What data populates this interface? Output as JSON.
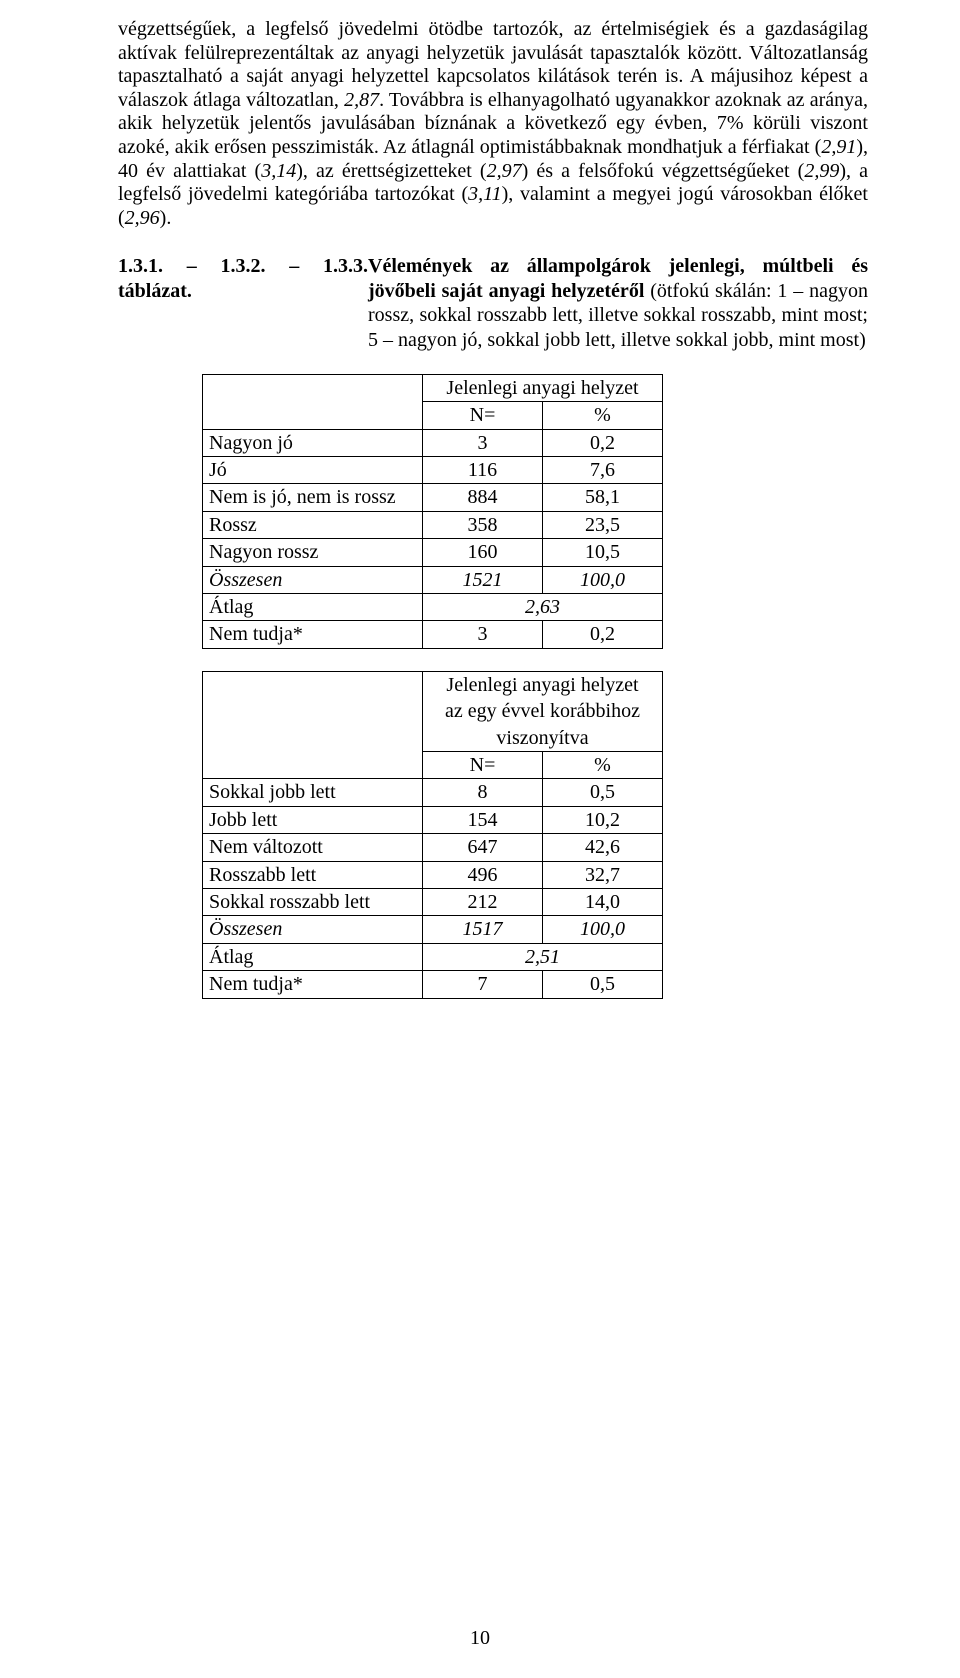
{
  "paragraph": {
    "p1": "végzettségűek, a legfelső jövedelmi ötödbe tartozók, az értelmiségiek és a gazdaságilag aktívak felülreprezentáltak az anyagi helyzetük javulását tapasztalók között. Változatlanság tapasztalható a saját anyagi helyzettel kapcsolatos kilátások terén is. A májusihoz képest a válaszok átlaga változatlan, ",
    "v1": "2,87",
    "p2": ". Továbbra is elhanyagolható ugyanakkor azoknak az aránya, akik helyzetük jelentős javulásában bíznának a következő egy évben, 7% körüli viszont azoké, akik erősen pesszimisták. Az átlagnál optimistábbaknak mondhatjuk a férfiakat (",
    "v2": "2,91",
    "p3": "), 40 év alattiakat (",
    "v3": "3,14",
    "p4": "), az érettségizetteket (",
    "v4": "2,97",
    "p5": ") és a felsőfokú végzettségűeket (",
    "v5": "2,99",
    "p6": "), a legfelső jövedelmi kategóriába tartozókat (",
    "v6": "3,11",
    "p7": "), valamint a megyei jogú városokban élőket (",
    "v7": "2,96",
    "p8": ")."
  },
  "heading": {
    "num": "1.3.1. – 1.3.2. – 1.3.3. táblázat. ",
    "title": "Vélemények az állampolgárok jelenlegi, múltbeli és jövőbeli saját anyagi helyzetéről ",
    "desc": "(ötfokú skálán: 1 – nagyon rossz, sokkal rosszabb lett, illetve sokkal rosszabb, mint most; 5 – nagyon jó, sokkal jobb lett, illetve sokkal jobb, mint most)"
  },
  "table1": {
    "header": "Jelenlegi anyagi helyzet",
    "col_n": "N=",
    "col_pct": "%",
    "rows": [
      {
        "label": "Nagyon jó",
        "n": "3",
        "pct": "0,2"
      },
      {
        "label": "Jó",
        "n": "116",
        "pct": "7,6"
      },
      {
        "label": "Nem is jó, nem is rossz",
        "n": "884",
        "pct": "58,1"
      },
      {
        "label": "Rossz",
        "n": "358",
        "pct": "23,5"
      },
      {
        "label": "Nagyon rossz",
        "n": "160",
        "pct": "10,5"
      }
    ],
    "total": {
      "label": "Összesen",
      "n": "1521",
      "pct": "100,0"
    },
    "mean": {
      "label": "Átlag",
      "value": "2,63"
    },
    "dk": {
      "label": "Nem tudja*",
      "n": "3",
      "pct": "0,2"
    }
  },
  "table2": {
    "header_l1": "Jelenlegi anyagi helyzet",
    "header_l2": "az egy évvel korábbihoz",
    "header_l3": "viszonyítva",
    "col_n": "N=",
    "col_pct": "%",
    "rows": [
      {
        "label": "Sokkal jobb lett",
        "n": "8",
        "pct": "0,5"
      },
      {
        "label": "Jobb lett",
        "n": "154",
        "pct": "10,2"
      },
      {
        "label": "Nem változott",
        "n": "647",
        "pct": "42,6"
      },
      {
        "label": "Rosszabb lett",
        "n": "496",
        "pct": "32,7"
      },
      {
        "label": "Sokkal rosszabb lett",
        "n": "212",
        "pct": "14,0"
      }
    ],
    "total": {
      "label": "Összesen",
      "n": "1517",
      "pct": "100,0"
    },
    "mean": {
      "label": "Átlag",
      "value": "2,51"
    },
    "dk": {
      "label": "Nem tudja*",
      "n": "7",
      "pct": "0,5"
    }
  },
  "pagenum": "10",
  "layout": {
    "col_label_w": 220,
    "col_n_w": 120,
    "col_pct_w": 120
  }
}
